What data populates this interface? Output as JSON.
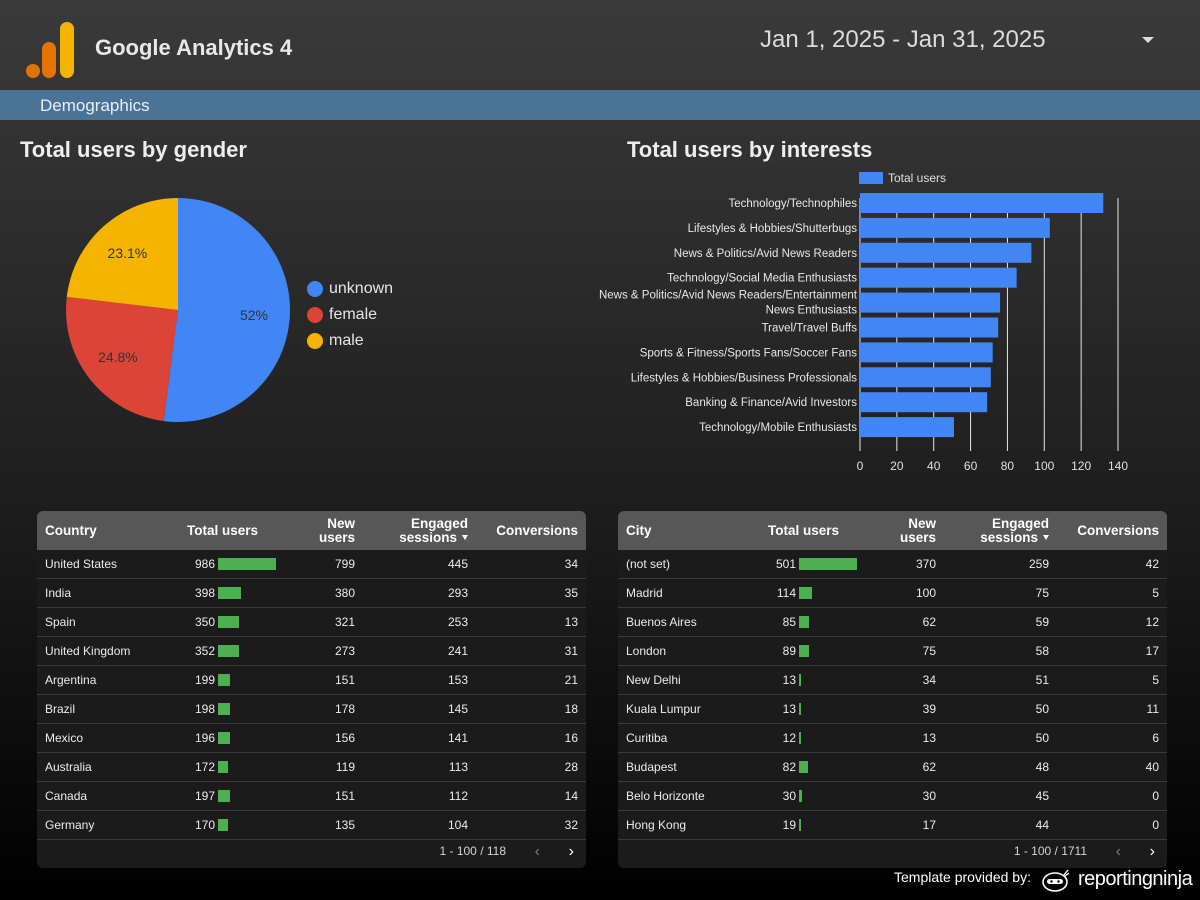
{
  "header": {
    "app_title": "Google Analytics 4",
    "date_range": "Jan 1, 2025 - Jan 31, 2025"
  },
  "banner": {
    "label": "Demographics"
  },
  "gender_section": {
    "title": "Total users by gender"
  },
  "interests_section": {
    "title": "Total users by interests"
  },
  "chart_data": [
    {
      "type": "pie",
      "title": "Total users by gender",
      "slices": [
        {
          "label": "unknown",
          "value": 52,
          "display": "52%",
          "color": "#4285f4"
        },
        {
          "label": "female",
          "value": 24.8,
          "display": "24.8%",
          "color": "#db4437"
        },
        {
          "label": "male",
          "value": 23.1,
          "display": "23.1%",
          "color": "#f4b400"
        }
      ],
      "legend_position": "right"
    },
    {
      "type": "bar",
      "orientation": "horizontal",
      "title": "Total users by interests",
      "series": [
        {
          "name": "Total users",
          "color": "#4285f4",
          "values": [
            132,
            103,
            93,
            85,
            76,
            75,
            72,
            71,
            69,
            51
          ]
        }
      ],
      "categories": [
        "Technology/Technophiles",
        "Lifestyles & Hobbies/Shutterbugs",
        "News & Politics/Avid News Readers",
        "Technology/Social Media Enthusiasts",
        "News & Politics/Avid News Readers/Entertainment News Enthusiasts",
        "Travel/Travel Buffs",
        "Sports & Fitness/Sports Fans/Soccer Fans",
        "Lifestyles & Hobbies/Business Professionals",
        "Banking & Finance/Avid Investors",
        "Technology/Mobile Enthusiasts"
      ],
      "xlim": [
        0,
        140
      ],
      "xticks": [
        "0",
        "20",
        "40",
        "60",
        "80",
        "100",
        "120",
        "140"
      ],
      "legend_position": "top",
      "grid": true
    }
  ],
  "country_table": {
    "headers": {
      "dim": "Country",
      "total": "Total users",
      "new_l1": "New",
      "new_l2": "users",
      "eng_l1": "Engaged",
      "eng_l2": "sessions",
      "conv": "Conversions"
    },
    "max_total": 986,
    "rows": [
      [
        "United States",
        986,
        799,
        445,
        34
      ],
      [
        "India",
        398,
        380,
        293,
        35
      ],
      [
        "Spain",
        350,
        321,
        253,
        13
      ],
      [
        "United Kingdom",
        352,
        273,
        241,
        31
      ],
      [
        "Argentina",
        199,
        151,
        153,
        21
      ],
      [
        "Brazil",
        198,
        178,
        145,
        18
      ],
      [
        "Mexico",
        196,
        156,
        141,
        16
      ],
      [
        "Australia",
        172,
        119,
        113,
        28
      ],
      [
        "Canada",
        197,
        151,
        112,
        14
      ],
      [
        "Germany",
        170,
        135,
        104,
        32
      ]
    ],
    "pagination": "1 - 100 / 118"
  },
  "city_table": {
    "headers": {
      "dim": "City",
      "total": "Total users",
      "new_l1": "New",
      "new_l2": "users",
      "eng_l1": "Engaged",
      "eng_l2": "sessions",
      "conv": "Conversions"
    },
    "max_total": 501,
    "rows": [
      [
        "(not set)",
        501,
        370,
        259,
        42
      ],
      [
        "Madrid",
        114,
        100,
        75,
        5
      ],
      [
        "Buenos Aires",
        85,
        62,
        59,
        12
      ],
      [
        "London",
        89,
        75,
        58,
        17
      ],
      [
        "New Delhi",
        13,
        34,
        51,
        5
      ],
      [
        "Kuala Lumpur",
        13,
        39,
        50,
        11
      ],
      [
        "Curitiba",
        12,
        13,
        50,
        6
      ],
      [
        "Budapest",
        82,
        62,
        48,
        40
      ],
      [
        "Belo Horizonte",
        30,
        30,
        45,
        0
      ],
      [
        "Hong Kong",
        19,
        17,
        44,
        0
      ]
    ],
    "pagination": "1 - 100 / 1711"
  },
  "footer": {
    "label": "Template provided by:",
    "brand": "reportingninja"
  },
  "icons": {
    "date_dropdown": "chevron-down-icon",
    "prev": "chevron-left-icon",
    "next": "chevron-right-icon"
  }
}
